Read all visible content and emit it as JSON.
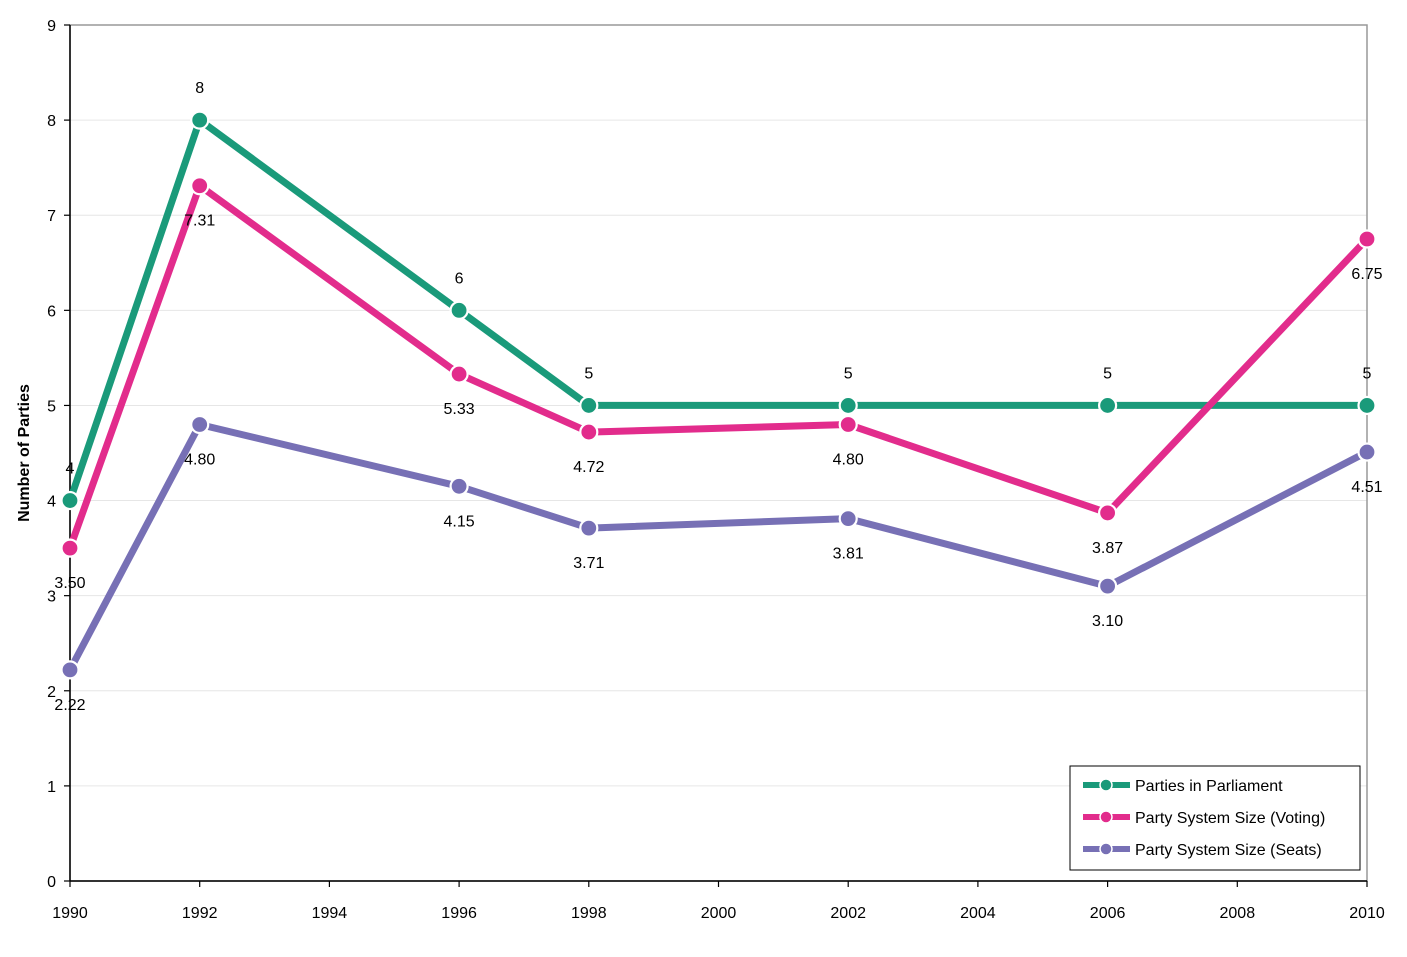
{
  "chart_data": {
    "type": "line",
    "title": "",
    "xlabel": "",
    "ylabel": "Number of Parties",
    "xlim": [
      1990,
      2010
    ],
    "ylim": [
      0,
      9
    ],
    "x_ticks": [
      "1990",
      "1992",
      "1994",
      "1996",
      "1998",
      "2000",
      "2002",
      "2004",
      "2006",
      "2008",
      "2010"
    ],
    "y_ticks": [
      "0",
      "1",
      "2",
      "3",
      "4",
      "5",
      "6",
      "7",
      "8",
      "9"
    ],
    "grid": "horizontal",
    "legend_position": "bottom-right",
    "series": [
      {
        "name": "Parties in Parliament",
        "color": "#1a9a7a",
        "x": [
          1990,
          1992,
          1996,
          1998,
          2002,
          2006,
          2010
        ],
        "y": [
          4,
          8,
          6,
          5,
          5,
          5,
          5
        ],
        "labels": [
          "4",
          "8",
          "6",
          "5",
          "5",
          "5",
          "5"
        ],
        "label_position": "above"
      },
      {
        "name": "Party System Size (Voting)",
        "color": "#e22c8c",
        "x": [
          1990,
          1992,
          1996,
          1998,
          2002,
          2006,
          2010
        ],
        "y": [
          3.5,
          7.31,
          5.33,
          4.72,
          4.8,
          3.87,
          6.75
        ],
        "labels": [
          "3.50",
          "7.31",
          "5.33",
          "4.72",
          "4.80",
          "3.87",
          "6.75"
        ],
        "label_position": "below"
      },
      {
        "name": "Party System Size (Seats)",
        "color": "#7770b5",
        "x": [
          1990,
          1992,
          1996,
          1998,
          2002,
          2006,
          2010
        ],
        "y": [
          2.22,
          4.8,
          4.15,
          3.71,
          3.81,
          3.1,
          4.51
        ],
        "labels": [
          "2.22",
          "4.80",
          "4.15",
          "3.71",
          "3.81",
          "3.10",
          "4.51"
        ],
        "label_position": "below"
      }
    ]
  }
}
